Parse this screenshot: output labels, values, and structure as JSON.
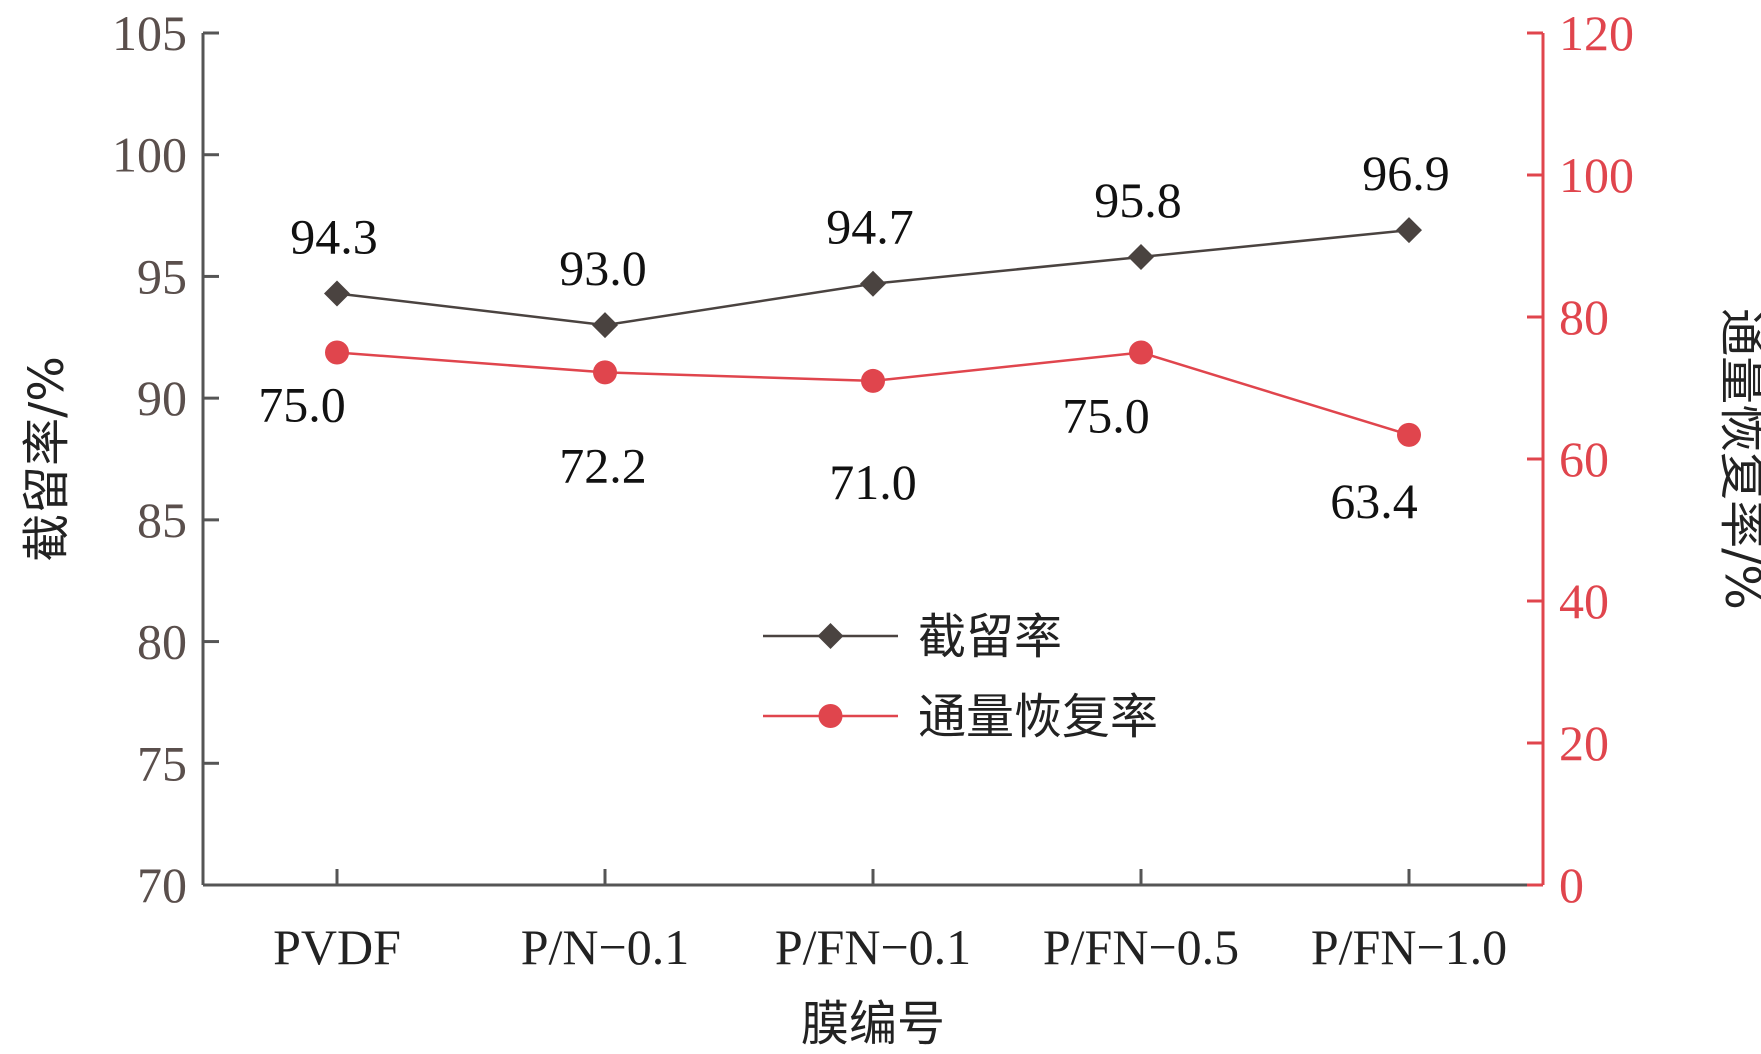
{
  "chart_data": {
    "type": "line",
    "categories": [
      "PVDF",
      "P/N−0.1",
      "P/FN−0.1",
      "P/FN−0.5",
      "P/FN−1.0"
    ],
    "xlabel": "膜编号",
    "ylabel": "截留率/%",
    "ylabel_right": "通量恢复率/%",
    "ylim": [
      70,
      105
    ],
    "yticks": [
      70,
      75,
      80,
      85,
      90,
      95,
      100,
      105
    ],
    "ylim_right": [
      0,
      120
    ],
    "yticks_right": [
      0,
      20,
      40,
      60,
      80,
      100,
      120
    ],
    "grid": false,
    "legend_position": "center-right",
    "series": [
      {
        "name": "截留率",
        "axis": "left",
        "marker": "diamond",
        "color": "#4a4340",
        "values": [
          94.3,
          93.0,
          94.7,
          95.8,
          96.9
        ],
        "labels": [
          "94.3",
          "93.0",
          "94.7",
          "95.8",
          "96.9"
        ]
      },
      {
        "name": "通量恢复率",
        "axis": "right",
        "marker": "circle",
        "color": "#e0454d",
        "values": [
          75.0,
          72.2,
          71.0,
          75.0,
          63.4
        ],
        "labels": [
          "75.0",
          "72.2",
          "71.0",
          "75.0",
          "63.4"
        ]
      }
    ]
  }
}
